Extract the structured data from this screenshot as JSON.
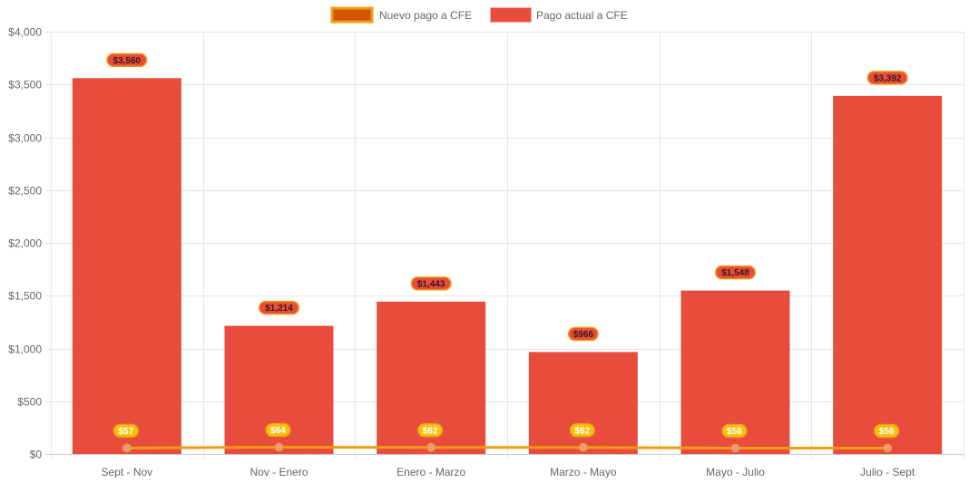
{
  "chart_data": {
    "type": "bar",
    "categories": [
      "Sept - Nov",
      "Nov - Enero",
      "Enero - Marzo",
      "Marzo - Mayo",
      "Mayo - Julio",
      "Julio - Sept"
    ],
    "series": [
      {
        "name": "Pago actual a CFE",
        "type": "bar",
        "values": [
          3560,
          1214,
          1443,
          966,
          1548,
          3392
        ],
        "labels": [
          "$3,560",
          "$1,214",
          "$1,443",
          "$966",
          "$1,548",
          "$3,392"
        ],
        "color": "#e74c3c"
      },
      {
        "name": "Nuevo pago a CFE",
        "type": "line",
        "values": [
          57,
          64,
          62,
          62,
          56,
          56
        ],
        "labels": [
          "$57",
          "$64",
          "$62",
          "$62",
          "$56",
          "$56"
        ],
        "color": "#f39c12",
        "fill_color": "#d35400"
      }
    ],
    "ylim": [
      0,
      4000
    ],
    "yticks": [
      0,
      500,
      1000,
      1500,
      2000,
      2500,
      3000,
      3500,
      4000
    ],
    "ytick_labels": [
      "$0",
      "$500",
      "$1,000",
      "$1,500",
      "$2,000",
      "$2,500",
      "$3,000",
      "$3,500",
      "$4,000"
    ],
    "legend": {
      "position": "top-center",
      "entries": [
        "Nuevo pago a CFE",
        "Pago actual a CFE"
      ]
    },
    "grid": true,
    "title": "",
    "xlabel": "",
    "ylabel": ""
  }
}
